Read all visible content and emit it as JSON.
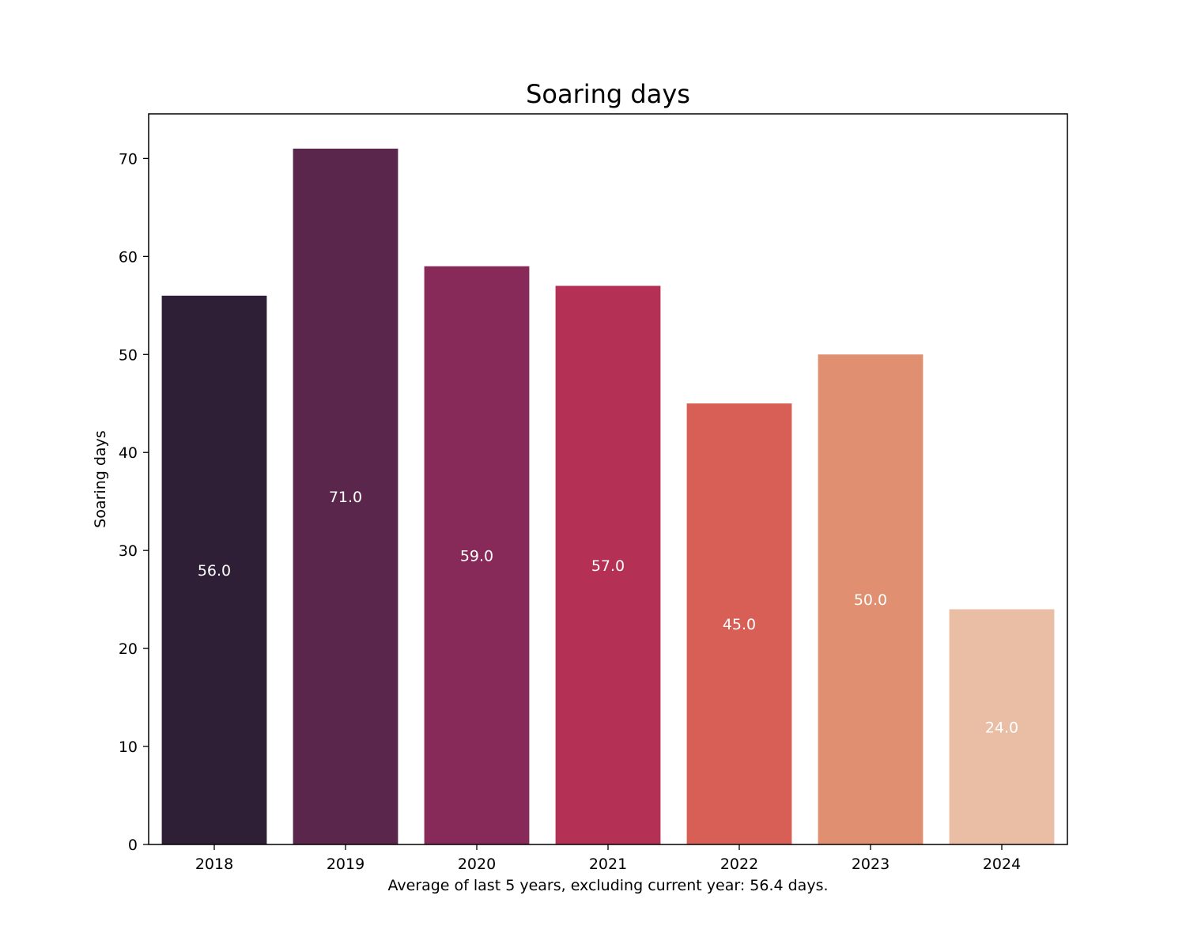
{
  "chart_data": {
    "type": "bar",
    "title": "Soaring days",
    "xlabel": "Average of last 5 years, excluding current year: 56.4 days.",
    "ylabel": "Soaring days",
    "categories": [
      "2018",
      "2019",
      "2020",
      "2021",
      "2022",
      "2023",
      "2024"
    ],
    "values": [
      56,
      71,
      59,
      57,
      45,
      50,
      24
    ],
    "data_labels": [
      "56.0",
      "71.0",
      "59.0",
      "57.0",
      "45.0",
      "50.0",
      "24.0"
    ],
    "colors": [
      "#2e1e36",
      "#5a264c",
      "#872a59",
      "#b43055",
      "#d75f56",
      "#e09071",
      "#e9bea5"
    ],
    "ylim": [
      0,
      74.55
    ],
    "yticks": [
      0,
      10,
      20,
      30,
      40,
      50,
      60,
      70
    ],
    "ytick_labels": [
      "0",
      "10",
      "20",
      "30",
      "40",
      "50",
      "60",
      "70"
    ],
    "grid": false,
    "legend": "none"
  }
}
